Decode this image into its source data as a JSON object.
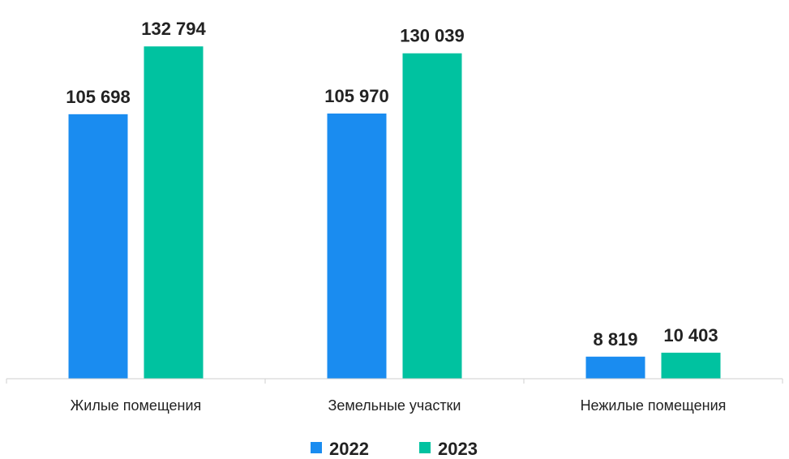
{
  "chart_data": {
    "type": "bar",
    "categories": [
      "Жилые помещения",
      "Земельные участки",
      "Нежилые помещения"
    ],
    "series": [
      {
        "name": "2022",
        "color": "#1a8cf0",
        "values": [
          105698,
          105970,
          8819
        ],
        "labels": [
          "105 698",
          "105 970",
          "8 819"
        ]
      },
      {
        "name": "2023",
        "color": "#00c2a0",
        "values": [
          132794,
          130039,
          10403
        ],
        "labels": [
          "132 794",
          "130 039",
          "10 403"
        ]
      }
    ],
    "ylim": [
      0,
      140000
    ],
    "legend_position": "bottom",
    "grid": false
  }
}
